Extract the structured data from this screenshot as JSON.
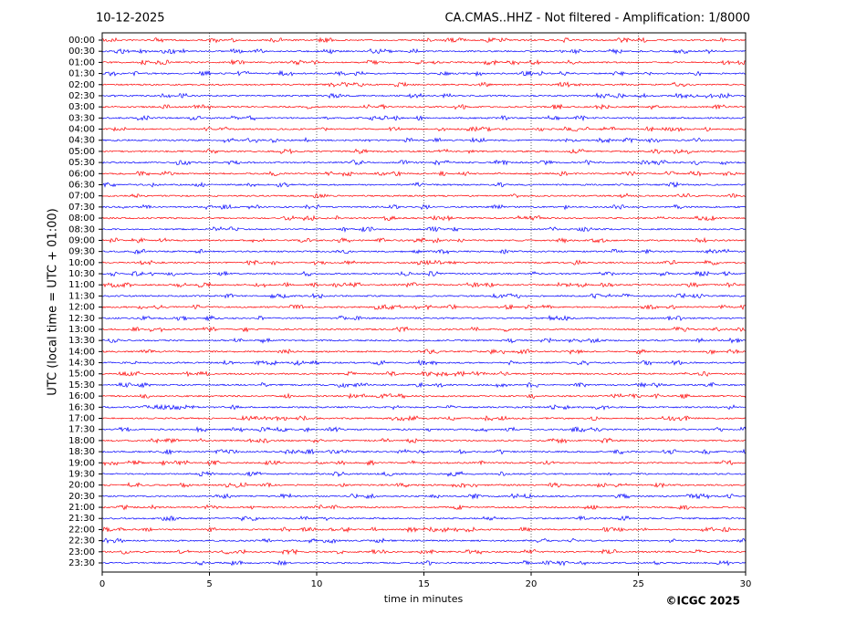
{
  "chart_data": {
    "type": "helicorder",
    "date": "10-12-2025",
    "title": "CA.CMAS..HHZ - Not filtered - Amplification: 1/8000",
    "y_label": "UTC (local time = UTC + 01:00)",
    "x_label": "time in minutes",
    "copyright": "©ICGC 2025",
    "categories": [
      "00:00",
      "00:30",
      "01:00",
      "01:30",
      "02:00",
      "02:30",
      "03:00",
      "03:30",
      "04:00",
      "04:30",
      "05:00",
      "05:30",
      "06:00",
      "06:30",
      "07:00",
      "07:30",
      "08:00",
      "08:30",
      "09:00",
      "09:30",
      "10:00",
      "10:30",
      "11:00",
      "11:30",
      "12:00",
      "12:30",
      "13:00",
      "13:30",
      "14:00",
      "14:30",
      "15:00",
      "15:30",
      "16:00",
      "16:30",
      "17:00",
      "17:30",
      "18:00",
      "18:30",
      "19:00",
      "19:30",
      "20:00",
      "20:30",
      "21:00",
      "21:30",
      "22:00",
      "22:30",
      "23:00",
      "23:30"
    ],
    "colors": [
      "red",
      "blue"
    ],
    "xlim": [
      0,
      30
    ],
    "xticks": [
      0,
      5,
      10,
      15,
      20,
      25,
      30
    ],
    "grid": true
  }
}
